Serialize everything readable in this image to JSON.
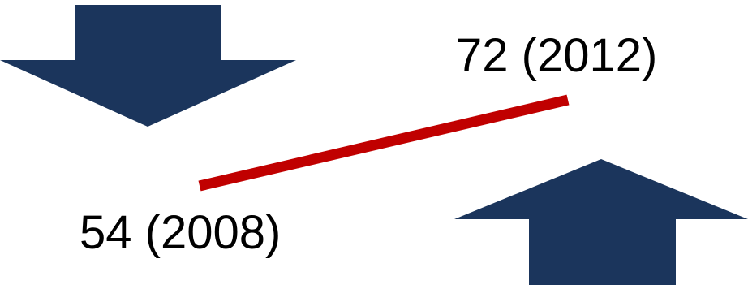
{
  "colors": {
    "arrow_fill": "#1b355c",
    "connector": "#c00000",
    "text": "#000000",
    "background": "#ffffff"
  },
  "icons": {
    "left_arrow": "arrow-down-icon",
    "right_arrow": "arrow-up-icon"
  },
  "labels": {
    "start": "54 (2008)",
    "end": "72 (2012)"
  },
  "values": {
    "start": {
      "value": 54,
      "year": 2008
    },
    "end": {
      "value": 72,
      "year": 2012
    }
  }
}
